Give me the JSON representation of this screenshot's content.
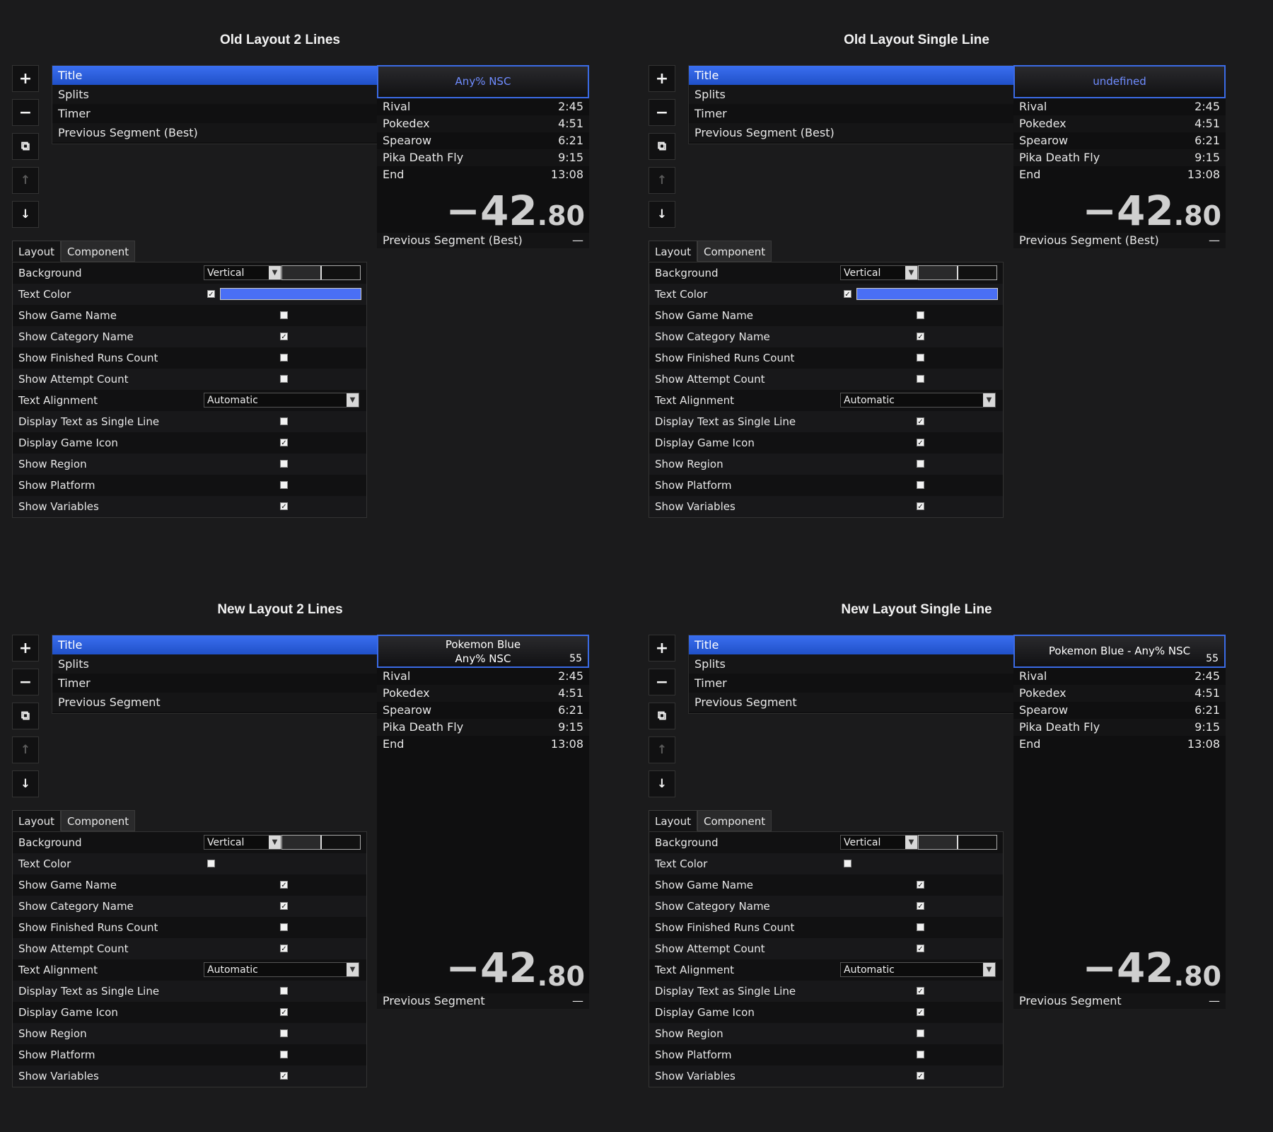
{
  "toolbar": {
    "add": "+",
    "remove": "−",
    "duplicate": "⧉",
    "up": "↑",
    "down": "↓"
  },
  "tabs": {
    "layout": "Layout",
    "component": "Component"
  },
  "settings_labels": {
    "background": "Background",
    "text_color": "Text Color",
    "show_game_name": "Show Game Name",
    "show_category_name": "Show Category Name",
    "show_finished_runs_count": "Show Finished Runs Count",
    "show_attempt_count": "Show Attempt Count",
    "text_alignment": "Text Alignment",
    "display_single_line": "Display Text as Single Line",
    "display_game_icon": "Display Game Icon",
    "show_region": "Show Region",
    "show_platform": "Show Platform",
    "show_variables": "Show Variables"
  },
  "select_values": {
    "gradient": "Vertical",
    "alignment": "Automatic"
  },
  "splits": [
    {
      "name": "Rival",
      "time": "2:45"
    },
    {
      "name": "Pokedex",
      "time": "4:51"
    },
    {
      "name": "Spearow",
      "time": "6:21"
    },
    {
      "name": "Pika Death Fly",
      "time": "9:15"
    },
    {
      "name": "End",
      "time": "13:08"
    }
  ],
  "timer": {
    "main": "−42",
    "fraction": ".80"
  },
  "prev_seg_value": "—",
  "colors": {
    "accent": "#3b6be6",
    "text_color_swatch": "#4a6ff5",
    "background": "#1b1b1c"
  },
  "panels": [
    {
      "heading": "Old Layout 2 Lines",
      "components": [
        "Title",
        "Splits",
        "Timer",
        "Previous Segment (Best)"
      ],
      "title_line1": "Any% NSC",
      "title_line2": "",
      "title_count": "",
      "title_color": "#6f8cff",
      "prev_seg_label": "Previous Segment (Best)",
      "text_color_checked": true,
      "checks": {
        "show_game_name": false,
        "show_category_name": true,
        "show_finished_runs_count": false,
        "show_attempt_count": false,
        "display_single_line": false,
        "display_game_icon": true,
        "show_region": false,
        "show_platform": false,
        "show_variables": true
      }
    },
    {
      "heading": "Old Layout Single Line",
      "components": [
        "Title",
        "Splits",
        "Timer",
        "Previous Segment (Best)"
      ],
      "title_line1": "undefined",
      "title_line2": "",
      "title_count": "",
      "title_color": "#6f8cff",
      "prev_seg_label": "Previous Segment (Best)",
      "text_color_checked": true,
      "checks": {
        "show_game_name": false,
        "show_category_name": true,
        "show_finished_runs_count": false,
        "show_attempt_count": false,
        "display_single_line": true,
        "display_game_icon": true,
        "show_region": false,
        "show_platform": false,
        "show_variables": true
      }
    },
    {
      "heading": "New Layout 2 Lines",
      "components": [
        "Title",
        "Splits",
        "Timer",
        "Previous Segment"
      ],
      "title_line1": "Pokemon Blue",
      "title_line2": "Any% NSC",
      "title_count": "55",
      "title_color": "#ffffff",
      "prev_seg_label": "Previous Segment",
      "text_color_checked": false,
      "checks": {
        "show_game_name": true,
        "show_category_name": true,
        "show_finished_runs_count": false,
        "show_attempt_count": true,
        "display_single_line": false,
        "display_game_icon": true,
        "show_region": false,
        "show_platform": false,
        "show_variables": true
      }
    },
    {
      "heading": "New Layout Single Line",
      "components": [
        "Title",
        "Splits",
        "Timer",
        "Previous Segment"
      ],
      "title_line1": "Pokemon Blue - Any% NSC",
      "title_line2": "",
      "title_count": "55",
      "title_color": "#ffffff",
      "prev_seg_label": "Previous Segment",
      "text_color_checked": false,
      "checks": {
        "show_game_name": true,
        "show_category_name": true,
        "show_finished_runs_count": false,
        "show_attempt_count": true,
        "display_single_line": true,
        "display_game_icon": true,
        "show_region": false,
        "show_platform": false,
        "show_variables": true
      }
    }
  ]
}
